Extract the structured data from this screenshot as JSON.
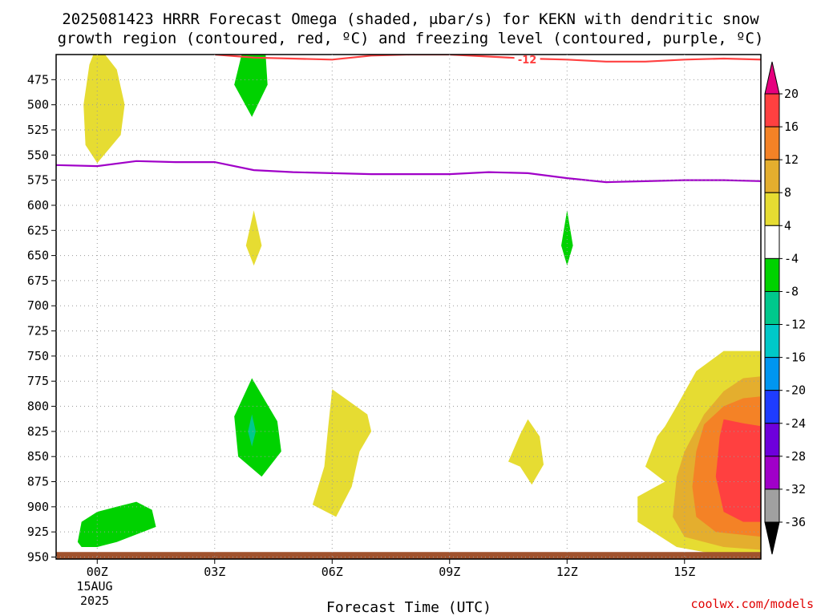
{
  "chart_data": {
    "type": "contour",
    "title_lines": [
      "2025081423 HRRR Forecast Omega (shaded, μbar/s) for KEKN with dendritic snow",
      "growth region (contoured, red, ºC) and freezing level (contoured, purple, ºC)"
    ],
    "xlabel": "Forecast Time (UTC)",
    "credit": "coolwx.com/models",
    "x_range_hours": [
      -1.05,
      16.95
    ],
    "y_range_mb": [
      450,
      952
    ],
    "x_ticks": [
      {
        "hour": 0,
        "label": "00Z"
      },
      {
        "hour": 3,
        "label": "03Z"
      },
      {
        "hour": 6,
        "label": "06Z"
      },
      {
        "hour": 9,
        "label": "09Z"
      },
      {
        "hour": 12,
        "label": "12Z"
      },
      {
        "hour": 15,
        "label": "15Z"
      }
    ],
    "x_date_labels": [
      "15AUG",
      "2025"
    ],
    "y_ticks": [
      475,
      500,
      525,
      550,
      575,
      600,
      625,
      650,
      675,
      700,
      725,
      750,
      775,
      800,
      825,
      850,
      875,
      900,
      925,
      950
    ],
    "colorbar": {
      "labels": [
        "20",
        "16",
        "12",
        "8",
        "4",
        "-4",
        "-8",
        "-12",
        "-16",
        "-20",
        "-24",
        "-28",
        "-32",
        "-36"
      ],
      "segments": [
        {
          "lo": 16,
          "hi": 20,
          "color": "#ff4040"
        },
        {
          "lo": 12,
          "hi": 16,
          "color": "#f48226"
        },
        {
          "lo": 8,
          "hi": 12,
          "color": "#e4ae2e"
        },
        {
          "lo": 4,
          "hi": 8,
          "color": "#e6dc32"
        },
        {
          "lo": -4,
          "hi": 4,
          "color": "#ffffff"
        },
        {
          "lo": -8,
          "hi": -4,
          "color": "#00d200"
        },
        {
          "lo": -12,
          "hi": -8,
          "color": "#00c88c"
        },
        {
          "lo": -16,
          "hi": -12,
          "color": "#00c8c8"
        },
        {
          "lo": -20,
          "hi": -16,
          "color": "#0096f0"
        },
        {
          "lo": -24,
          "hi": -20,
          "color": "#1e3cff"
        },
        {
          "lo": -28,
          "hi": -24,
          "color": "#6e00dc"
        },
        {
          "lo": -32,
          "hi": -28,
          "color": "#a000c8"
        },
        {
          "lo": -36,
          "hi": -32,
          "color": "#a0a0a0"
        }
      ],
      "top_arrow_color": "#e6007e",
      "bottom_arrow_color": "#000000"
    },
    "contour_lines": [
      {
        "name": "dendritic growth -12",
        "label": "-12",
        "label_at": [
          10.0,
          454
        ],
        "color": "#ff4040",
        "points": [
          [
            3.0,
            450
          ],
          [
            4.0,
            453
          ],
          [
            6.0,
            455
          ],
          [
            7.0,
            451
          ],
          [
            8.0,
            450
          ],
          [
            9.0,
            450
          ],
          [
            10.0,
            452
          ],
          [
            11.0,
            454
          ],
          [
            12.0,
            455
          ],
          [
            13.0,
            457
          ],
          [
            14.0,
            457
          ],
          [
            15.0,
            455
          ],
          [
            16.0,
            454
          ],
          [
            17.0,
            455
          ]
        ]
      },
      {
        "name": "freezing level",
        "color": "#a000c8",
        "points": [
          [
            -1.05,
            560
          ],
          [
            0.0,
            561
          ],
          [
            1.0,
            556
          ],
          [
            2.0,
            557
          ],
          [
            3.0,
            557
          ],
          [
            4.0,
            565
          ],
          [
            5.0,
            567
          ],
          [
            6.0,
            568
          ],
          [
            7.0,
            569
          ],
          [
            9.0,
            569
          ],
          [
            10.0,
            567
          ],
          [
            11.0,
            568
          ],
          [
            12.0,
            573
          ],
          [
            12.5,
            575
          ],
          [
            13.0,
            577
          ],
          [
            14.0,
            576
          ],
          [
            15.0,
            575
          ],
          [
            16.0,
            575
          ],
          [
            17.0,
            576
          ]
        ]
      }
    ],
    "shaded_regions": [
      {
        "name": "positive 4-8 near 00Z upper",
        "color": "#e6dc32",
        "points": [
          [
            0.0,
            440
          ],
          [
            0.5,
            465
          ],
          [
            0.7,
            500
          ],
          [
            0.6,
            530
          ],
          [
            0.0,
            558
          ],
          [
            -0.3,
            540
          ],
          [
            -0.35,
            500
          ],
          [
            -0.2,
            460
          ]
        ]
      },
      {
        "name": "negative -4 to -8 near 04Z upper",
        "color": "#00d200",
        "points": [
          [
            3.7,
            448
          ],
          [
            4.3,
            450
          ],
          [
            4.35,
            480
          ],
          [
            3.95,
            512
          ],
          [
            3.5,
            480
          ]
        ]
      },
      {
        "name": "positive 4-8 near 04Z mid",
        "color": "#e6dc32",
        "points": [
          [
            4.0,
            605
          ],
          [
            4.2,
            640
          ],
          [
            4.0,
            660
          ],
          [
            3.8,
            640
          ]
        ]
      },
      {
        "name": "negative -4 to -8 near 12Z mid",
        "color": "#00d200",
        "points": [
          [
            12.0,
            605
          ],
          [
            12.15,
            640
          ],
          [
            12.0,
            660
          ],
          [
            11.85,
            640
          ]
        ]
      },
      {
        "name": "negative -4 to -8 near 04Z low",
        "color": "#00d200",
        "points": [
          [
            3.95,
            772
          ],
          [
            4.6,
            815
          ],
          [
            4.7,
            845
          ],
          [
            4.2,
            870
          ],
          [
            3.6,
            850
          ],
          [
            3.5,
            810
          ]
        ]
      },
      {
        "name": "negative -8 to -12 near 04Z low",
        "color": "#00c88c",
        "points": [
          [
            3.95,
            808
          ],
          [
            4.05,
            825
          ],
          [
            3.95,
            840
          ],
          [
            3.85,
            825
          ]
        ]
      },
      {
        "name": "positive 4-8 near 06Z low",
        "color": "#e6dc32",
        "points": [
          [
            6.0,
            783
          ],
          [
            6.9,
            808
          ],
          [
            7.0,
            825
          ],
          [
            6.7,
            845
          ],
          [
            6.5,
            880
          ],
          [
            6.1,
            910
          ],
          [
            5.5,
            898
          ],
          [
            5.8,
            860
          ],
          [
            5.9,
            820
          ]
        ]
      },
      {
        "name": "positive 4-8 near 11Z low",
        "color": "#e6dc32",
        "points": [
          [
            10.6,
            846
          ],
          [
            10.8,
            828
          ],
          [
            11.0,
            813
          ],
          [
            11.3,
            830
          ],
          [
            11.4,
            858
          ],
          [
            11.1,
            878
          ],
          [
            10.8,
            860
          ],
          [
            10.5,
            855
          ]
        ]
      },
      {
        "name": "negative -4 to -8 near 00Z low",
        "color": "#00d200",
        "points": [
          [
            -0.5,
            935
          ],
          [
            -0.4,
            915
          ],
          [
            0.0,
            905
          ],
          [
            0.5,
            900
          ],
          [
            1.0,
            895
          ],
          [
            1.4,
            903
          ],
          [
            1.5,
            920
          ],
          [
            0.5,
            935
          ],
          [
            0.0,
            940
          ],
          [
            -0.4,
            940
          ]
        ]
      },
      {
        "name": "positive 4-8 near 16Z low",
        "color": "#e6dc32",
        "points": [
          [
            17.0,
            745
          ],
          [
            16.0,
            745
          ],
          [
            15.3,
            765
          ],
          [
            14.8,
            800
          ],
          [
            14.5,
            820
          ],
          [
            14.3,
            830
          ],
          [
            14.0,
            860
          ],
          [
            14.5,
            875
          ],
          [
            13.8,
            890
          ],
          [
            13.8,
            915
          ],
          [
            14.8,
            940
          ],
          [
            15.5,
            945
          ],
          [
            17.0,
            948
          ]
        ]
      },
      {
        "name": "positive 8-12 near 16Z low",
        "color": "#e4ae2e",
        "points": [
          [
            17.0,
            770
          ],
          [
            16.5,
            772
          ],
          [
            16.0,
            785
          ],
          [
            15.5,
            808
          ],
          [
            15.0,
            845
          ],
          [
            14.8,
            870
          ],
          [
            14.7,
            910
          ],
          [
            15.0,
            930
          ],
          [
            16.0,
            940
          ],
          [
            17.0,
            943
          ]
        ]
      },
      {
        "name": "positive 12-16 near 16Z low",
        "color": "#f48226",
        "points": [
          [
            17.0,
            790
          ],
          [
            16.5,
            792
          ],
          [
            16.0,
            800
          ],
          [
            15.5,
            818
          ],
          [
            15.3,
            845
          ],
          [
            15.2,
            880
          ],
          [
            15.3,
            910
          ],
          [
            15.8,
            925
          ],
          [
            17.0,
            930
          ]
        ]
      },
      {
        "name": "positive 16-20 near 16Z low",
        "color": "#ff4040",
        "points": [
          [
            17.0,
            820
          ],
          [
            16.5,
            817
          ],
          [
            16.0,
            813
          ],
          [
            15.9,
            830
          ],
          [
            15.8,
            870
          ],
          [
            16.0,
            905
          ],
          [
            16.5,
            915
          ],
          [
            17.0,
            915
          ]
        ]
      }
    ],
    "terrain_band": {
      "color": "#a0522d",
      "top_mb": 945
    }
  }
}
